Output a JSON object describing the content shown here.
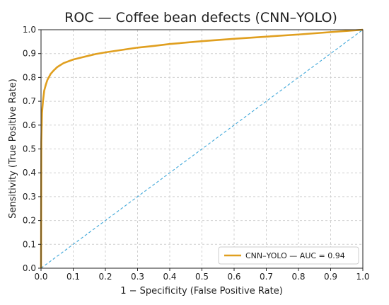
{
  "chart_data": {
    "type": "line",
    "title": "ROC — Coffee bean defects (CNN–YOLO)",
    "xlabel": "1 − Specificity (False Positive Rate)",
    "ylabel": "Sensitivity (True Positive Rate)",
    "xlim": [
      0,
      1
    ],
    "ylim": [
      0,
      1
    ],
    "xticks": [
      "0.0",
      "0.1",
      "0.2",
      "0.3",
      "0.4",
      "0.5",
      "0.6",
      "0.7",
      "0.8",
      "0.9",
      "1.0"
    ],
    "yticks": [
      "0.0",
      "0.1",
      "0.2",
      "0.3",
      "0.4",
      "0.5",
      "0.6",
      "0.7",
      "0.8",
      "0.9",
      "1.0"
    ],
    "grid": true,
    "legend": {
      "placement": "bottom-right"
    },
    "series": [
      {
        "name": "CNN–YOLO — AUC = 0.94",
        "color": "#e09f1f",
        "style": "solid",
        "x": [
          0,
          0.001,
          0.003,
          0.006,
          0.01,
          0.015,
          0.02,
          0.03,
          0.04,
          0.05,
          0.07,
          0.1,
          0.13,
          0.17,
          0.2,
          0.25,
          0.3,
          0.35,
          0.4,
          0.5,
          0.6,
          0.7,
          0.8,
          0.9,
          0.95,
          1.0
        ],
        "y": [
          0,
          0.53,
          0.65,
          0.7,
          0.745,
          0.77,
          0.79,
          0.815,
          0.83,
          0.843,
          0.86,
          0.875,
          0.885,
          0.898,
          0.905,
          0.915,
          0.925,
          0.932,
          0.94,
          0.952,
          0.962,
          0.971,
          0.98,
          0.99,
          0.995,
          1.0
        ]
      },
      {
        "name": "",
        "color": "#3fa7d9",
        "style": "dashed",
        "x": [
          0,
          1
        ],
        "y": [
          0,
          1
        ]
      }
    ]
  }
}
